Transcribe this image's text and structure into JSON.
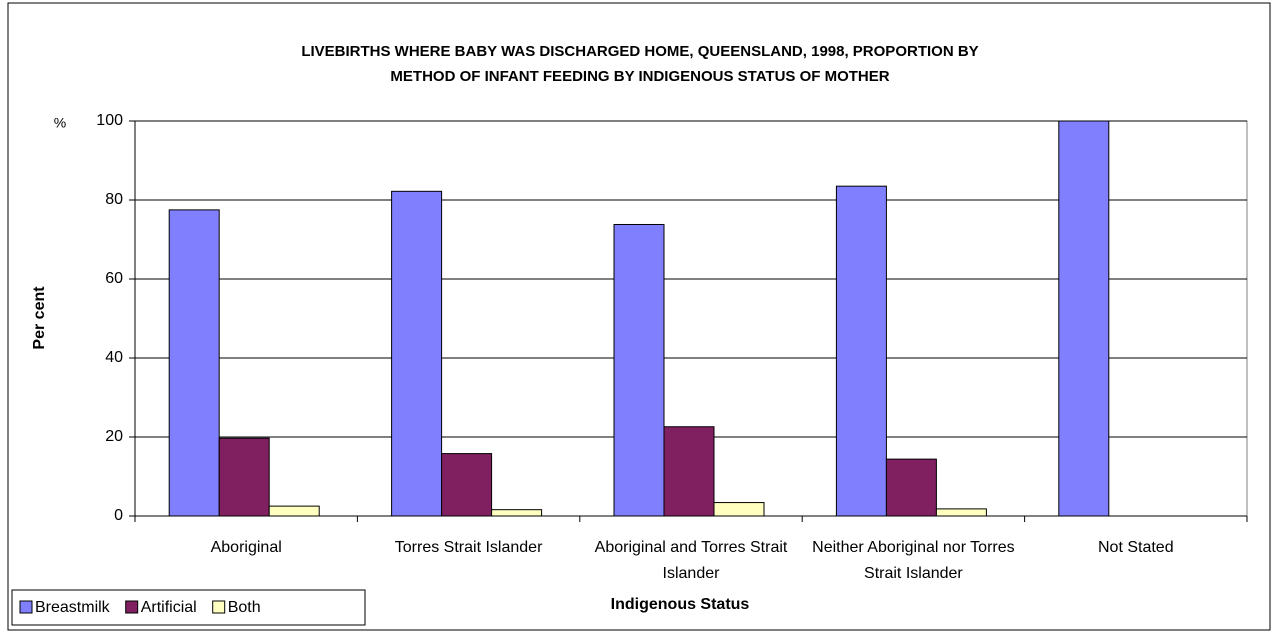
{
  "chart_data": {
    "type": "bar",
    "title": [
      "LIVEBIRTHS WHERE BABY WAS DISCHARGED HOME, QUEENSLAND, 1998,  PROPORTION BY",
      "METHOD OF INFANT FEEDING BY INDIGENOUS STATUS OF MOTHER"
    ],
    "y_unit": "%",
    "y_label": "Per cent",
    "x_label": "Indigenous Status",
    "categories": [
      "Aboriginal",
      "Torres Strait Islander",
      "Aboriginal and Torres Strait Islander",
      "Neither Aboriginal nor Torres Strait Islander",
      "Not Stated"
    ],
    "series": [
      {
        "name": "Breastmilk",
        "color": "#8080ff",
        "values": [
          77.5,
          82.2,
          73.8,
          83.5,
          100
        ]
      },
      {
        "name": "Artificial",
        "color": "#802060",
        "values": [
          19.7,
          15.8,
          22.6,
          14.4,
          0
        ]
      },
      {
        "name": "Both",
        "color": "#ffffc0",
        "values": [
          2.5,
          1.6,
          3.4,
          1.8,
          0
        ]
      }
    ],
    "ylim": [
      0,
      100
    ],
    "yticks": [
      0,
      20,
      40,
      60,
      80,
      100
    ],
    "grid": true,
    "legend": "bottom-left"
  }
}
